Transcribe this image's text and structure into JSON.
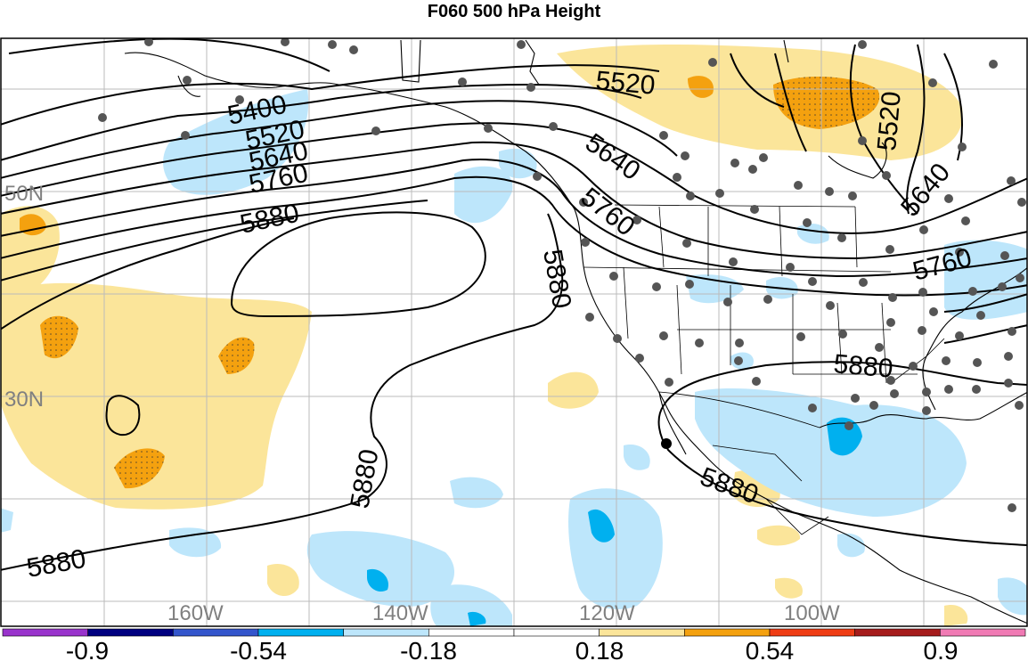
{
  "title": "F060 500 hPa Height",
  "lat_labels": [
    "50N",
    "30N"
  ],
  "lon_labels": [
    "160W",
    "140W",
    "120W",
    "100W"
  ],
  "contour_labels": [
    "5400",
    "5520",
    "5640",
    "5760",
    "5880",
    "5880",
    "5880",
    "5880",
    "5880",
    "5880",
    "5520",
    "5640",
    "5760",
    "5520",
    "5640",
    "5760",
    "5880"
  ],
  "colorbar": {
    "labels": [
      "-0.9",
      "-0.54",
      "-0.18",
      "0.18",
      "0.54",
      "0.9"
    ],
    "colors": [
      "#9933cc",
      "#000080",
      "#3355cc",
      "#00b0ef",
      "#bde6fb",
      "#ffffff",
      "#ffffff",
      "#fbe59a",
      "#f4a10f",
      "#ef3c14",
      "#a51c1c",
      "#f07ab4"
    ]
  },
  "colors": {
    "positive_light": "#fbe59a",
    "positive_strong": "#f4a10f",
    "negative_light": "#bde6fb",
    "negative_strong": "#00b0ef",
    "station": "#555555",
    "grid": "#bbbbbb"
  }
}
